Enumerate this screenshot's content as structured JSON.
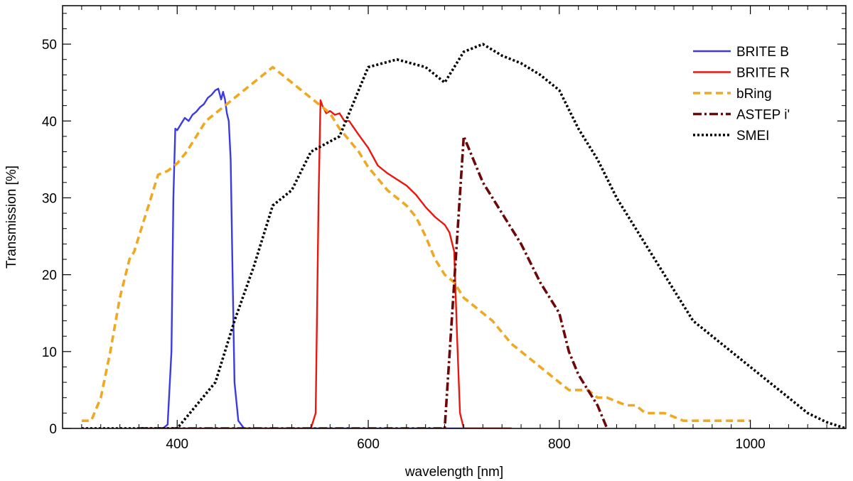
{
  "chart_data": {
    "type": "line",
    "title": "",
    "xlabel": "wavelength [nm]",
    "ylabel": "Transmission [%]",
    "xlim": [
      280,
      1100
    ],
    "ylim": [
      0,
      55
    ],
    "x_ticks": [
      400,
      600,
      800,
      1000
    ],
    "y_ticks": [
      0,
      10,
      20,
      30,
      40,
      50
    ],
    "grid": false,
    "legend_position": "top-right",
    "series": [
      {
        "name": "BRITE B",
        "color": "#3a3ae6",
        "dash": "solid",
        "x": [
          360,
          385,
          390,
          394,
          396,
          398,
          400,
          404,
          408,
          412,
          416,
          420,
          424,
          428,
          432,
          436,
          440,
          443,
          446,
          448,
          450,
          452,
          454,
          456,
          458,
          460,
          464,
          470,
          480,
          500,
          550,
          600,
          650,
          700,
          750
        ],
        "y": [
          0,
          0,
          0.5,
          10,
          30,
          39,
          38.8,
          39.6,
          40.4,
          40,
          40.8,
          41.2,
          41.8,
          42.2,
          43,
          43.4,
          44,
          44.2,
          42.8,
          43.8,
          42.8,
          41,
          40,
          35,
          20,
          6,
          1,
          0,
          0,
          0,
          0,
          0,
          0,
          0,
          0
        ]
      },
      {
        "name": "BRITE R",
        "color": "#e8180e",
        "dash": "solid",
        "x": [
          360,
          400,
          450,
          500,
          540,
          545,
          548,
          550,
          552,
          556,
          560,
          565,
          570,
          575,
          580,
          590,
          600,
          610,
          620,
          630,
          640,
          650,
          660,
          670,
          680,
          685,
          690,
          693,
          696,
          700,
          705,
          750
        ],
        "y": [
          0,
          0,
          0,
          0,
          0,
          2,
          30,
          42.7,
          42,
          41,
          41.3,
          40.8,
          41,
          40,
          40,
          38.2,
          36.5,
          34.2,
          33.2,
          32.4,
          31.6,
          30.4,
          28.8,
          27.5,
          26.5,
          25.5,
          23,
          12,
          2,
          0,
          0,
          0
        ]
      },
      {
        "name": "bRing",
        "color": "#f0a820",
        "dash": "dashed",
        "x": [
          300,
          310,
          320,
          330,
          340,
          350,
          355,
          360,
          370,
          380,
          390,
          400,
          410,
          420,
          430,
          440,
          450,
          460,
          470,
          480,
          490,
          500,
          510,
          520,
          540,
          550,
          560,
          570,
          580,
          590,
          600,
          610,
          620,
          630,
          640,
          650,
          660,
          670,
          680,
          690,
          700,
          710,
          720,
          730,
          740,
          750,
          760,
          770,
          780,
          790,
          800,
          810,
          820,
          830,
          840,
          850,
          860,
          870,
          880,
          890,
          900,
          910,
          920,
          930,
          940,
          960,
          980,
          1000
        ],
        "y": [
          1,
          1,
          4,
          10,
          17,
          22,
          23,
          25,
          29,
          33,
          33.5,
          34.5,
          36,
          38,
          40,
          41,
          42,
          43,
          44,
          45,
          46,
          47,
          46,
          45,
          43,
          42,
          41,
          39,
          37.5,
          36,
          34,
          32.5,
          31,
          30,
          29,
          27.5,
          25,
          22,
          20,
          19,
          17,
          16,
          15,
          14,
          12.5,
          11,
          10,
          9,
          8,
          7,
          6,
          5,
          5,
          5,
          4,
          4,
          3.5,
          3,
          3,
          2,
          2,
          2,
          1.5,
          1,
          1,
          1,
          1,
          1
        ]
      },
      {
        "name": "ASTEP i'",
        "color": "#6e0808",
        "dash": "dashdot",
        "x": [
          360,
          400,
          450,
          500,
          550,
          600,
          650,
          680,
          700,
          720,
          740,
          760,
          780,
          800,
          810,
          820,
          830,
          840,
          850
        ],
        "y": [
          0,
          0,
          0,
          0,
          0,
          0,
          0,
          0,
          38,
          32,
          28,
          24,
          19,
          15,
          10,
          7,
          5,
          3,
          0
        ]
      },
      {
        "name": "SMEI",
        "color": "#000000",
        "dash": "dotted",
        "x": [
          300,
          400,
          440,
          460,
          480,
          500,
          520,
          540,
          570,
          600,
          630,
          660,
          680,
          700,
          720,
          740,
          760,
          780,
          800,
          820,
          840,
          860,
          880,
          900,
          920,
          940,
          960,
          980,
          1000,
          1020,
          1040,
          1060,
          1080,
          1100
        ],
        "y": [
          0,
          0,
          6,
          14,
          21,
          29,
          31,
          36,
          38,
          47,
          48,
          47,
          45,
          49,
          50,
          48.5,
          47.5,
          46,
          44,
          39,
          35,
          30,
          26,
          22,
          18,
          14,
          12,
          10,
          8,
          6,
          4,
          2,
          0.8,
          0
        ]
      }
    ]
  }
}
